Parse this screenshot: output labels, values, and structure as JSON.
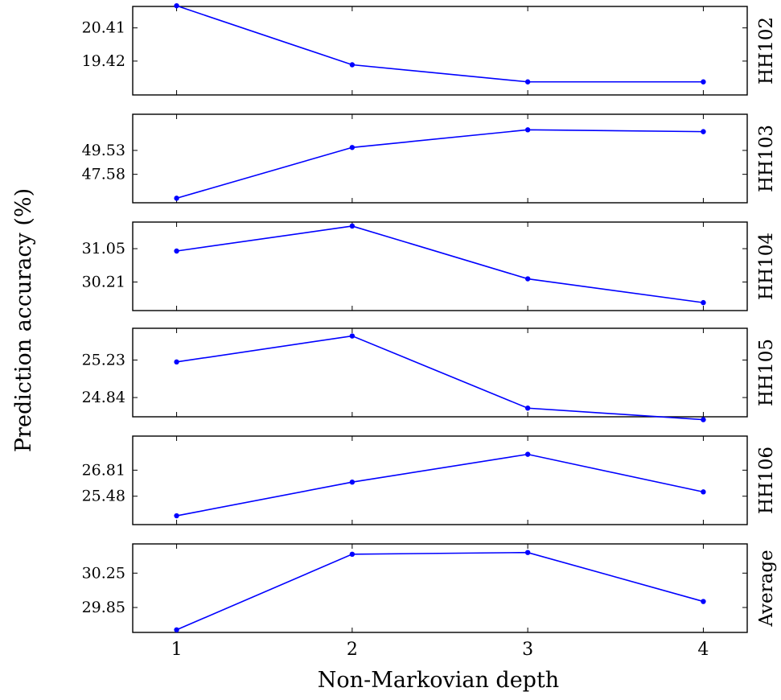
{
  "chart_data": {
    "type": "line",
    "xlabel": "Non-Markovian depth",
    "ylabel": "Prediction accuracy (%)",
    "x": [
      1,
      2,
      3,
      4
    ],
    "x_ticks": [
      "1",
      "2",
      "3",
      "4"
    ],
    "xlim": [
      0.75,
      4.25
    ],
    "line_color": "#0000ff",
    "panels": [
      {
        "label": "HH102",
        "ylim": [
          18.41,
          21.05
        ],
        "y_ticks": [
          "20.41",
          "19.42"
        ],
        "y_tick_values": [
          20.41,
          19.42
        ],
        "values": [
          21.07,
          19.31,
          18.8,
          18.8
        ]
      },
      {
        "label": "HH103",
        "ylim": [
          45.26,
          52.48
        ],
        "y_ticks": [
          "49.53",
          "47.58"
        ],
        "y_tick_values": [
          49.53,
          47.58
        ],
        "values": [
          45.63,
          49.77,
          51.21,
          51.06
        ]
      },
      {
        "label": "HH104",
        "ylim": [
          29.49,
          31.72
        ],
        "y_ticks": [
          "31.05",
          "30.21"
        ],
        "y_tick_values": [
          31.05,
          30.21
        ],
        "values": [
          30.99,
          31.62,
          30.29,
          29.69
        ]
      },
      {
        "label": "HH105",
        "ylim": [
          24.64,
          25.56
        ],
        "y_ticks": [
          "25.23",
          "24.84"
        ],
        "y_tick_values": [
          25.23,
          24.84
        ],
        "values": [
          25.21,
          25.48,
          24.73,
          24.61
        ]
      },
      {
        "label": "HH106",
        "ylim": [
          24.03,
          28.55
        ],
        "y_ticks": [
          "26.81",
          "25.48"
        ],
        "y_tick_values": [
          26.81,
          25.48
        ],
        "values": [
          24.48,
          26.2,
          27.62,
          25.7
        ]
      },
      {
        "label": "Average",
        "ylim": [
          29.56,
          30.59
        ],
        "y_ticks": [
          "30.25",
          "29.85"
        ],
        "y_tick_values": [
          30.25,
          29.85
        ],
        "values": [
          29.59,
          30.47,
          30.49,
          29.92
        ]
      }
    ]
  }
}
